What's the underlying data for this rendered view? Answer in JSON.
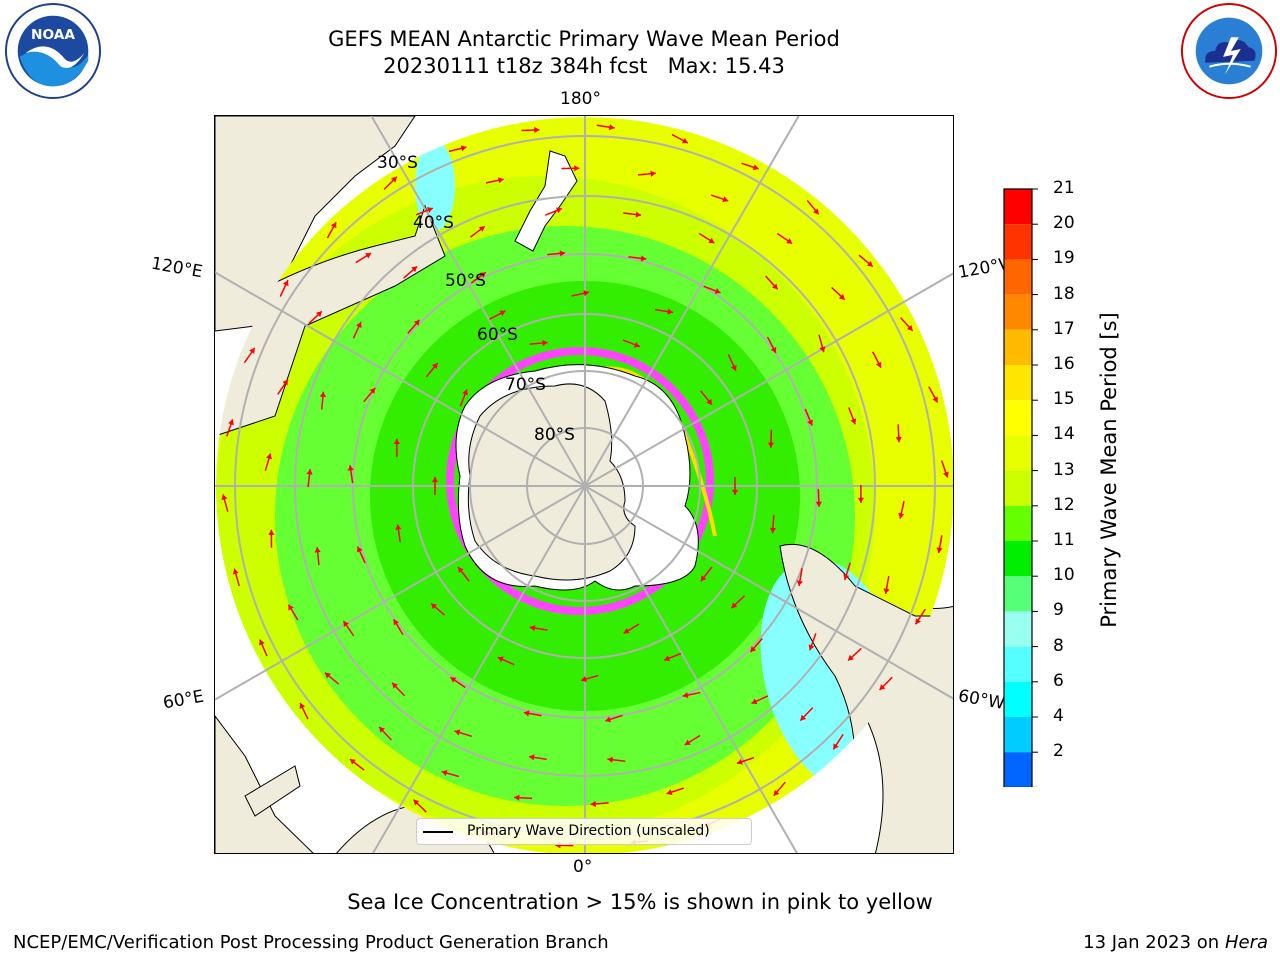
{
  "title": {
    "line1": "GEFS MEAN Antarctic Primary Wave Mean Period",
    "line2": "20230111 t18z 384h fcst   Max: 15.43"
  },
  "logos": {
    "left": "noaa-logo",
    "left_text": "NOAA",
    "right": "national-weather-service-logo",
    "right_text": "NATIONAL WEATHER SERVICE"
  },
  "map": {
    "projection": "south-polar-stereographic",
    "longitude_labels": {
      "top": "180°",
      "bottom": "0°",
      "upper_left": "120°E",
      "upper_right": "120°W",
      "lower_left": "60°E",
      "lower_right": "60°W"
    },
    "latitude_labels": [
      "30°S",
      "40°S",
      "50°S",
      "60°S",
      "70°S",
      "80°S"
    ],
    "legend_label": "Primary Wave Direction (unscaled)",
    "colors": {
      "land": "#efecdc",
      "ocean_low": "#66ff33",
      "ocean_mid": "#33ee00",
      "ocean_high": "#ccff00",
      "ocean_highest": "#e8ff00",
      "short_period": "#88ffff",
      "arrow": "#ff0000",
      "sea_ice": "#ff44ff",
      "graticule": "#b0b0b0"
    }
  },
  "colorbar": {
    "label": "Primary Wave Mean Period [s]",
    "ticks": [
      "21",
      "20",
      "19",
      "18",
      "17",
      "16",
      "15",
      "14",
      "13",
      "12",
      "11",
      "10",
      "9",
      "8",
      "6",
      "4",
      "2"
    ],
    "colors": [
      "#ff0000",
      "#ff3300",
      "#ff6600",
      "#ff8800",
      "#ffbb00",
      "#ffe600",
      "#ffff00",
      "#e8ff00",
      "#ccff00",
      "#66ff00",
      "#00ee00",
      "#55ff77",
      "#99ffee",
      "#55ffff",
      "#00ffff",
      "#00ccff",
      "#0066ff"
    ],
    "extend_color": "#0000ee"
  },
  "caption": "Sea Ice Concentration > 15% is shown in pink to yellow",
  "footer": {
    "left": "NCEP/EMC/Verification Post Processing Product Generation Branch",
    "right_prefix": "13 Jan 2023 on ",
    "right_host": "Hera"
  }
}
